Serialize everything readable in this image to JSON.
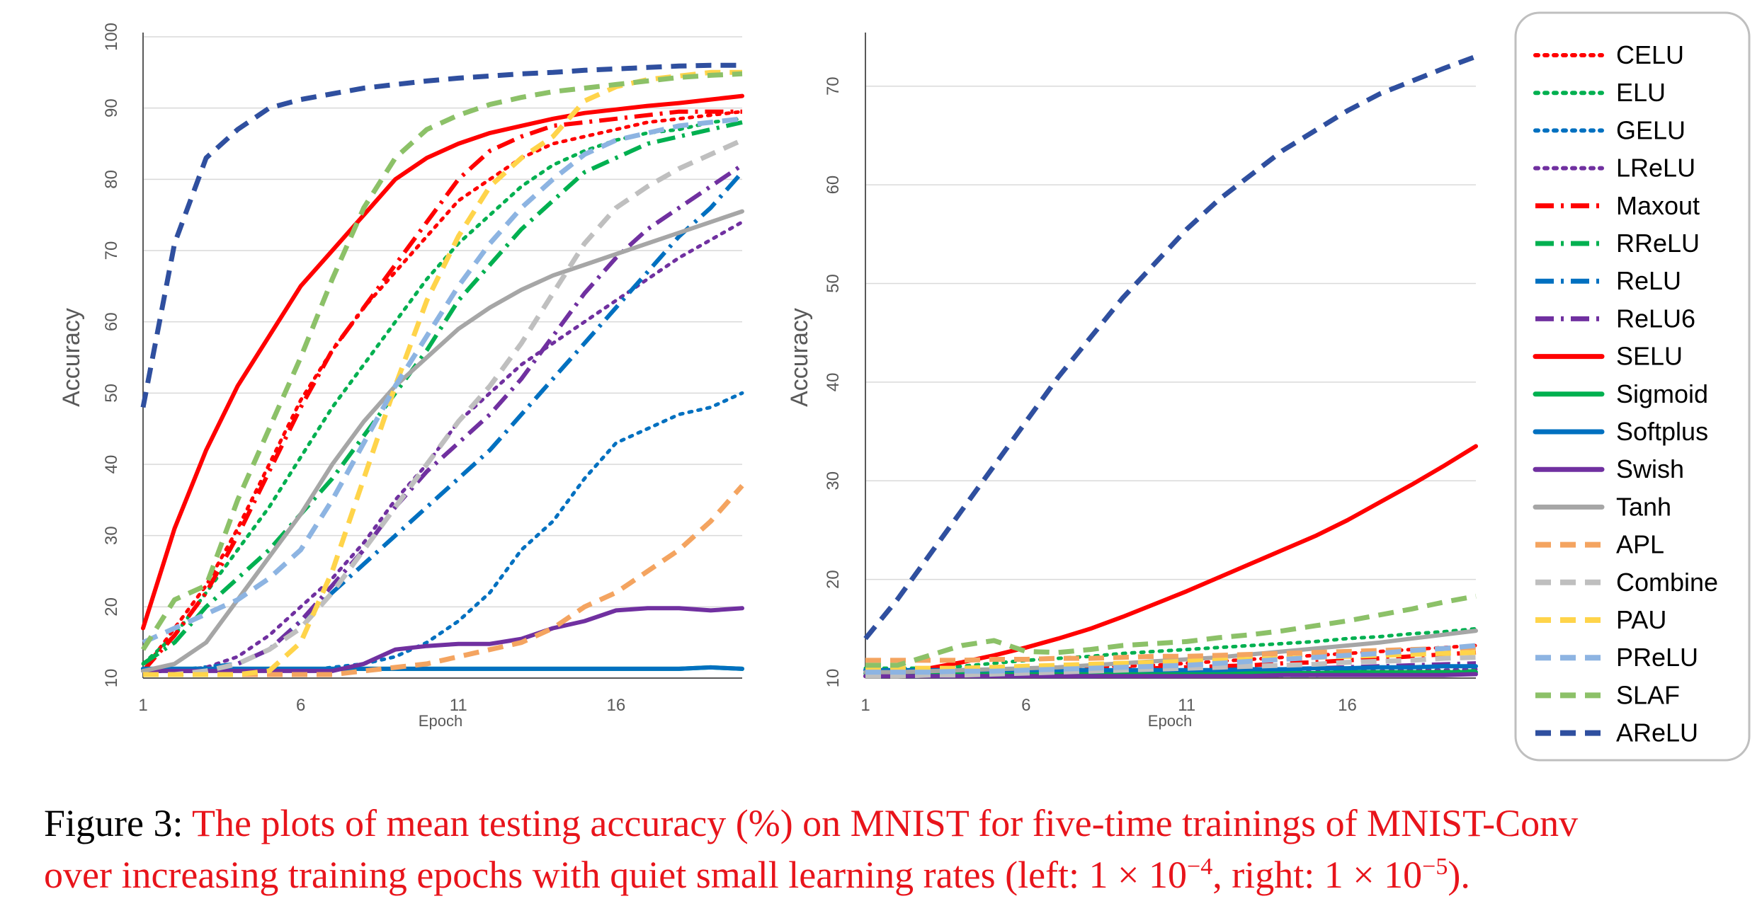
{
  "chart_data": [
    {
      "type": "line",
      "xlabel": "Epoch",
      "ylabel": "Accuracy",
      "xlim": [
        1,
        20
      ],
      "ylim": [
        10,
        100
      ],
      "x_ticks": [
        "1",
        "6",
        "11",
        "16"
      ],
      "y_ticks": [
        "10",
        "20",
        "30",
        "40",
        "50",
        "60",
        "70",
        "80",
        "90",
        "100"
      ],
      "grid": true,
      "x": [
        1,
        2,
        3,
        4,
        5,
        6,
        7,
        8,
        9,
        10,
        11,
        12,
        13,
        14,
        15,
        16,
        17,
        18,
        19,
        20
      ],
      "series": [
        {
          "name": "CELU",
          "values": [
            11,
            17,
            23,
            31,
            40,
            49,
            56,
            62,
            67,
            72,
            77,
            80,
            83,
            85,
            86,
            87,
            88,
            88.5,
            89,
            89.5
          ]
        },
        {
          "name": "ELU",
          "values": [
            12,
            16,
            22,
            28,
            34,
            41,
            48,
            54,
            60,
            66,
            71,
            75,
            79,
            82,
            84,
            85.5,
            86.5,
            87,
            88,
            88.5
          ]
        },
        {
          "name": "GELU",
          "values": [
            11,
            11,
            11,
            11,
            11,
            11,
            11.5,
            12,
            13,
            15,
            18,
            22,
            28,
            32,
            38,
            43,
            45,
            47,
            48,
            50
          ]
        },
        {
          "name": "LReLU",
          "values": [
            11,
            11,
            11.5,
            13,
            16,
            20,
            24,
            29,
            35,
            40,
            46,
            50,
            54,
            57,
            60,
            63,
            66,
            69,
            71.5,
            74
          ]
        },
        {
          "name": "Maxout",
          "values": [
            11,
            16,
            22,
            30,
            39,
            48,
            56,
            62,
            68,
            74,
            80,
            84,
            86,
            87.5,
            88,
            88.5,
            89,
            89.5,
            89.5,
            89.5
          ]
        },
        {
          "name": "RReLU",
          "values": [
            12,
            15,
            20,
            24,
            28,
            33,
            38,
            44,
            50,
            56,
            63,
            68,
            73,
            77,
            81,
            83,
            85,
            86,
            87,
            88
          ]
        },
        {
          "name": "ReLU",
          "values": [
            11,
            11,
            11.5,
            12,
            14,
            18,
            22,
            26,
            30,
            34,
            38,
            42,
            47,
            52,
            57,
            62,
            67,
            72,
            76,
            81
          ]
        },
        {
          "name": "ReLU6",
          "values": [
            11,
            11,
            11,
            12,
            14,
            18,
            23,
            28,
            34,
            39,
            43,
            47,
            52,
            58,
            64,
            69,
            73,
            76,
            79,
            82
          ]
        },
        {
          "name": "SELU",
          "values": [
            17,
            31,
            42,
            51,
            58,
            65,
            70,
            75,
            80,
            83,
            85,
            86.5,
            87.5,
            88.5,
            89.3,
            89.8,
            90.3,
            90.7,
            91.2,
            91.7
          ]
        },
        {
          "name": "Sigmoid",
          "values": [
            11.3,
            11.3,
            11.3,
            11.3,
            11.3,
            11.3,
            11.3,
            11.3,
            11.3,
            11.3,
            11.3,
            11.3,
            11.3,
            11.3,
            11.3,
            11.3,
            11.3,
            11.3,
            11.5,
            11.3
          ]
        },
        {
          "name": "Softplus",
          "values": [
            11.3,
            11.3,
            11.3,
            11.3,
            11.3,
            11.3,
            11.3,
            11.3,
            11.3,
            11.3,
            11.3,
            11.3,
            11.3,
            11.3,
            11.3,
            11.3,
            11.3,
            11.3,
            11.5,
            11.3
          ]
        },
        {
          "name": "Swish",
          "values": [
            11,
            11,
            11,
            11,
            11,
            11,
            11,
            12,
            14,
            14.5,
            14.8,
            14.8,
            15.5,
            17,
            18,
            19.5,
            19.8,
            19.8,
            19.5,
            19.8
          ]
        },
        {
          "name": "Tanh",
          "values": [
            11,
            12,
            15,
            21,
            27,
            33,
            40,
            46,
            51,
            55,
            59,
            62,
            64.5,
            66.5,
            68,
            69.5,
            71,
            72.5,
            74,
            75.5
          ]
        },
        {
          "name": "APL",
          "values": [
            10.5,
            10.5,
            10.5,
            10.5,
            10.5,
            10.5,
            10.5,
            11,
            11.5,
            12,
            13,
            14,
            15,
            17,
            20,
            22,
            25,
            28,
            32,
            37
          ]
        },
        {
          "name": "Combine",
          "values": [
            10.5,
            10.5,
            11,
            12,
            14,
            17,
            22,
            28,
            34,
            40,
            46,
            51,
            57,
            64,
            71,
            76,
            79,
            81.5,
            83.5,
            85.5
          ]
        },
        {
          "name": "PAU",
          "values": [
            10.5,
            10.5,
            10.5,
            10.5,
            11,
            15,
            25,
            38,
            51,
            63,
            72,
            79,
            83,
            86,
            91,
            93,
            94,
            94.5,
            95,
            95
          ]
        },
        {
          "name": "PReLU",
          "values": [
            15,
            17,
            19,
            21,
            24,
            28,
            35,
            43,
            51,
            58,
            65,
            71,
            76,
            80,
            83.5,
            85.5,
            86.5,
            87.5,
            88,
            88.5
          ]
        },
        {
          "name": "SLAF",
          "values": [
            14,
            21,
            23,
            35,
            45,
            55,
            66,
            76,
            83,
            87,
            89,
            90.5,
            91.5,
            92.3,
            92.8,
            93.3,
            93.8,
            94.3,
            94.6,
            94.8
          ]
        },
        {
          "name": "AReLU",
          "values": [
            48,
            71,
            83,
            87,
            90,
            91.2,
            92,
            92.8,
            93.3,
            93.8,
            94.2,
            94.5,
            94.8,
            95,
            95.3,
            95.5,
            95.7,
            95.9,
            96,
            96
          ]
        }
      ]
    },
    {
      "type": "line",
      "xlabel": "Epoch",
      "ylabel": "Accuracy",
      "xlim": [
        1,
        20
      ],
      "ylim": [
        10,
        75
      ],
      "x_ticks": [
        "1",
        "6",
        "11",
        "16"
      ],
      "y_ticks": [
        "10",
        "20",
        "30",
        "40",
        "50",
        "60",
        "70"
      ],
      "grid": true,
      "x": [
        1,
        2,
        3,
        4,
        5,
        6,
        7,
        8,
        9,
        10,
        11,
        12,
        13,
        14,
        15,
        16,
        17,
        18,
        19,
        20
      ],
      "series": [
        {
          "name": "CELU",
          "values": [
            10.5,
            10.5,
            10.6,
            10.7,
            10.8,
            10.9,
            11,
            11.1,
            11.2,
            11.3,
            11.5,
            11.7,
            11.9,
            12.1,
            12.3,
            12.5,
            12.7,
            12.9,
            13.1,
            13.3
          ]
        },
        {
          "name": "ELU",
          "values": [
            11,
            11,
            11,
            11.2,
            11.5,
            11.8,
            12,
            12.2,
            12.5,
            12.7,
            12.9,
            13.1,
            13.3,
            13.5,
            13.7,
            14,
            14.2,
            14.5,
            14.7,
            15
          ]
        },
        {
          "name": "GELU",
          "values": [
            10.3,
            10.3,
            10.3,
            10.3,
            10.3,
            10.3,
            10.3,
            10.3,
            10.3,
            10.3,
            10.3,
            10.3,
            10.4,
            10.4,
            10.4,
            10.4,
            10.5,
            10.5,
            10.5,
            10.6
          ]
        },
        {
          "name": "LReLU",
          "values": [
            10.5,
            10.5,
            10.5,
            10.5,
            10.5,
            10.5,
            10.5,
            10.5,
            10.5,
            10.5,
            10.5,
            10.5,
            10.6,
            10.6,
            10.6,
            10.7,
            10.7,
            10.8,
            10.8,
            10.9
          ]
        },
        {
          "name": "Maxout",
          "values": [
            10.4,
            10.4,
            10.5,
            10.5,
            10.6,
            10.6,
            10.7,
            10.8,
            10.9,
            11,
            11.1,
            11.2,
            11.3,
            11.5,
            11.6,
            11.8,
            12,
            12.2,
            12.4,
            12.6
          ]
        },
        {
          "name": "RReLU",
          "values": [
            10.3,
            10.3,
            10.3,
            10.3,
            10.3,
            10.3,
            10.3,
            10.3,
            10.3,
            10.3,
            10.3,
            10.3,
            10.3,
            10.3,
            10.4,
            10.4,
            10.5,
            10.6,
            10.6,
            10.7
          ]
        },
        {
          "name": "ReLU",
          "values": [
            10.2,
            10.2,
            10.2,
            10.2,
            10.2,
            10.2,
            10.2,
            10.2,
            10.2,
            10.2,
            10.2,
            10.3,
            10.3,
            10.3,
            10.3,
            10.4,
            10.4,
            10.4,
            10.5,
            10.5
          ]
        },
        {
          "name": "ReLU6",
          "values": [
            10.4,
            10.4,
            10.4,
            10.4,
            10.4,
            10.4,
            10.5,
            10.5,
            10.5,
            10.6,
            10.6,
            10.7,
            10.8,
            10.9,
            11,
            11.1,
            11.2,
            11.3,
            11.4,
            11.5
          ]
        },
        {
          "name": "SELU",
          "values": [
            10.2,
            10.5,
            11,
            11.6,
            12.3,
            13.1,
            14,
            15,
            16.2,
            17.5,
            18.8,
            20.2,
            21.6,
            23,
            24.4,
            26,
            27.8,
            29.6,
            31.5,
            33.5
          ]
        },
        {
          "name": "Sigmoid",
          "values": [
            10.5,
            10.5,
            10.5,
            10.5,
            10.5,
            10.5,
            10.5,
            10.5,
            10.5,
            10.5,
            10.5,
            10.5,
            10.5,
            10.5,
            10.5,
            10.6,
            10.6,
            10.6,
            10.6,
            10.6
          ]
        },
        {
          "name": "Softplus",
          "values": [
            10.8,
            10.8,
            10.8,
            10.8,
            10.8,
            10.8,
            10.8,
            10.8,
            10.8,
            10.8,
            10.8,
            10.8,
            10.9,
            10.9,
            11,
            11,
            11.1,
            11.1,
            11.2,
            11.2
          ]
        },
        {
          "name": "Swish",
          "values": [
            10.2,
            10.2,
            10.2,
            10.2,
            10.2,
            10.2,
            10.2,
            10.2,
            10.2,
            10.2,
            10.2,
            10.2,
            10.2,
            10.3,
            10.3,
            10.3,
            10.3,
            10.3,
            10.3,
            10.4
          ]
        },
        {
          "name": "Tanh",
          "values": [
            10.6,
            10.6,
            10.7,
            10.8,
            10.9,
            11,
            11.1,
            11.3,
            11.5,
            11.7,
            11.9,
            12.1,
            12.4,
            12.7,
            13,
            13.3,
            13.6,
            14,
            14.4,
            14.8
          ]
        },
        {
          "name": "APL",
          "values": [
            11.8,
            11.8,
            11.8,
            11.8,
            11.9,
            11.9,
            12,
            12,
            12.1,
            12.2,
            12.2,
            12.3,
            12.4,
            12.5,
            12.6,
            12.7,
            12.8,
            12.9,
            13,
            13.1
          ]
        },
        {
          "name": "Combine",
          "values": [
            10.2,
            10.2,
            10.3,
            10.3,
            10.4,
            10.5,
            10.6,
            10.7,
            10.8,
            10.9,
            11,
            11.1,
            11.2,
            11.3,
            11.4,
            11.6,
            11.7,
            11.8,
            12,
            12.1
          ]
        },
        {
          "name": "PAU",
          "values": [
            11,
            11,
            11,
            11,
            11.1,
            11.2,
            11.3,
            11.4,
            11.5,
            11.6,
            11.7,
            11.8,
            11.9,
            12,
            12.1,
            12.2,
            12.3,
            12.4,
            12.5,
            12.6
          ]
        },
        {
          "name": "PReLU",
          "values": [
            10.6,
            10.6,
            10.6,
            10.7,
            10.7,
            10.8,
            10.9,
            11,
            11.1,
            11.2,
            11.3,
            11.5,
            11.7,
            11.9,
            12.1,
            12.3,
            12.5,
            12.8,
            13,
            13.3
          ]
        },
        {
          "name": "SLAF",
          "values": [
            11.3,
            11.3,
            12.3,
            13.3,
            13.8,
            12.7,
            12.6,
            12.9,
            13.3,
            13.5,
            13.7,
            14.1,
            14.4,
            14.8,
            15.3,
            15.8,
            16.4,
            17,
            17.7,
            18.3
          ]
        },
        {
          "name": "AReLU",
          "values": [
            14,
            18,
            22.5,
            27,
            31.5,
            36,
            40.5,
            44.5,
            48.5,
            52,
            55.5,
            58.5,
            61,
            63.5,
            65.5,
            67.5,
            69.2,
            70.5,
            71.8,
            73
          ]
        }
      ]
    }
  ],
  "legend": [
    {
      "name": "CELU",
      "color": "#ff0000",
      "dash": "dot"
    },
    {
      "name": "ELU",
      "color": "#00b050",
      "dash": "dot"
    },
    {
      "name": "GELU",
      "color": "#0070c0",
      "dash": "dot"
    },
    {
      "name": "LReLU",
      "color": "#7030a0",
      "dash": "dot"
    },
    {
      "name": "Maxout",
      "color": "#ff0000",
      "dash": "dashdot"
    },
    {
      "name": "RReLU",
      "color": "#00b050",
      "dash": "dashdot"
    },
    {
      "name": "ReLU",
      "color": "#0070c0",
      "dash": "dashdot"
    },
    {
      "name": "ReLU6",
      "color": "#7030a0",
      "dash": "dashdot"
    },
    {
      "name": "SELU",
      "color": "#ff0000",
      "dash": "solid"
    },
    {
      "name": "Sigmoid",
      "color": "#00b050",
      "dash": "solid"
    },
    {
      "name": "Softplus",
      "color": "#0070c0",
      "dash": "solid"
    },
    {
      "name": "Swish",
      "color": "#7030a0",
      "dash": "solid"
    },
    {
      "name": "Tanh",
      "color": "#a6a6a6",
      "dash": "solid"
    },
    {
      "name": "APL",
      "color": "#f4a460",
      "dash": "dash"
    },
    {
      "name": "Combine",
      "color": "#bfbfbf",
      "dash": "dash"
    },
    {
      "name": "PAU",
      "color": "#ffd44a",
      "dash": "dash"
    },
    {
      "name": "PReLU",
      "color": "#8db4e2",
      "dash": "dash"
    },
    {
      "name": "SLAF",
      "color": "#8cc168",
      "dash": "dash"
    },
    {
      "name": "AReLU",
      "color": "#2f4f9f",
      "dash": "dash"
    }
  ],
  "caption": {
    "label": "Figure 3:",
    "line1": "The plots of mean testing accuracy (%) on MNIST for five-time trainings of MNIST-Conv",
    "line2_prefix": "over increasing training epochs with quiet small learning rates (left: ",
    "left_value": "1 × 10",
    "left_exp": "−4",
    "middle": ", right: ",
    "right_value": "1 × 10",
    "right_exp": "−5",
    "suffix": ")."
  }
}
